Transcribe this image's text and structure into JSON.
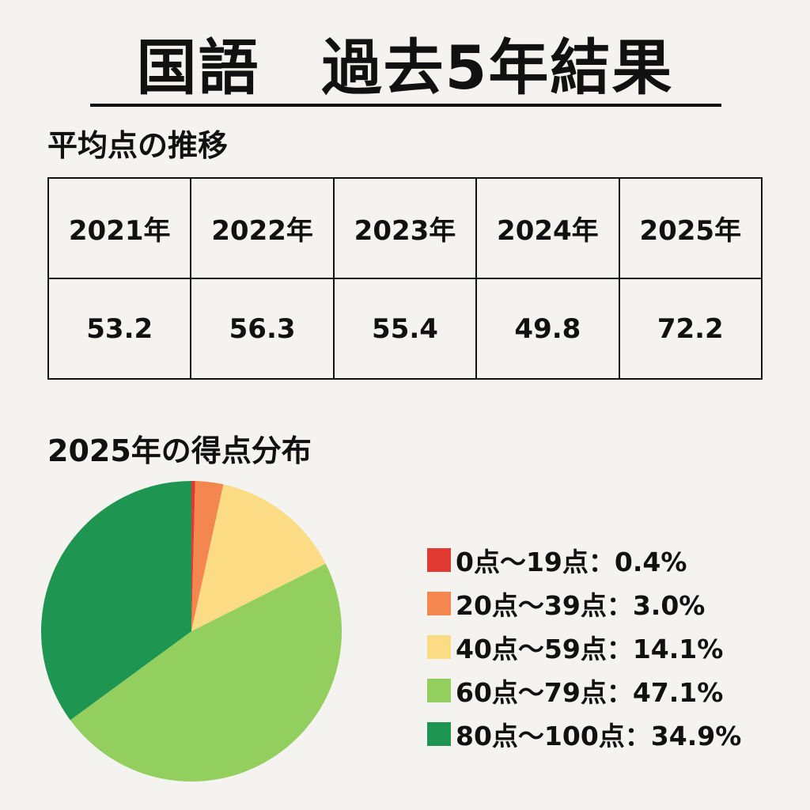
{
  "title": "国語　過去5年結果",
  "average_section": {
    "title": "平均点の推移"
  },
  "distribution_section": {
    "title": "2025年の得点分布"
  },
  "chart_data": [
    {
      "type": "table",
      "title": "平均点の推移",
      "columns": [
        "2021年",
        "2022年",
        "2023年",
        "2024年",
        "2025年"
      ],
      "rows": [
        [
          "53.2",
          "56.3",
          "55.4",
          "49.8",
          "72.2"
        ]
      ]
    },
    {
      "type": "pie",
      "title": "2025年の得点分布",
      "categories": [
        "0点〜19点",
        "20点〜39点",
        "40点〜59点",
        "60点〜79点",
        "80点〜100点"
      ],
      "values": [
        0.4,
        3.0,
        14.1,
        47.1,
        34.9
      ],
      "unit": "%",
      "legend_labels": [
        "0点〜19点：0.4%",
        "20点〜39点：3.0%",
        "40点〜59点：14.1%",
        "60点〜79点：47.1%",
        "80点〜100点：34.9%"
      ],
      "colors": [
        "#e03a32",
        "#f4874f",
        "#fbdc84",
        "#93cf5f",
        "#1e9550"
      ],
      "legend_position": "right"
    }
  ]
}
